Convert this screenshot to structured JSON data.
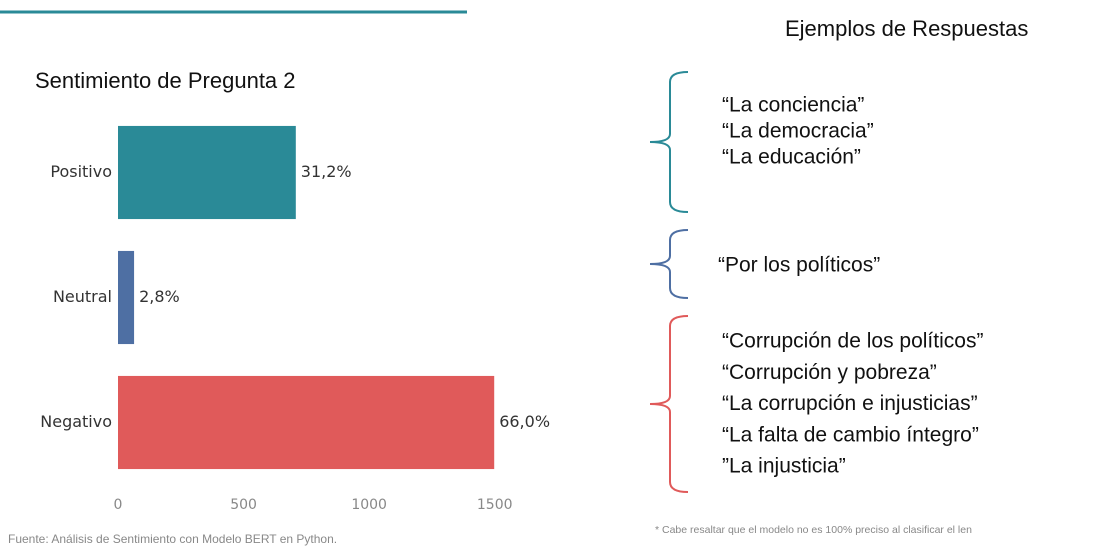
{
  "chart_data": {
    "type": "bar",
    "orientation": "horizontal",
    "title": "Sentimiento de Pregunta 2",
    "categories": [
      "Positivo",
      "Neutral",
      "Negativo"
    ],
    "values": [
      708,
      64,
      1498
    ],
    "share_labels": [
      "31,2%",
      "2,8%",
      "66,0%"
    ],
    "colors": [
      "#2a8a97",
      "#4e6fa3",
      "#e05a5a"
    ],
    "xlim": [
      0,
      1760
    ],
    "xticks": [
      0,
      500,
      1000,
      1500
    ]
  },
  "source": "Fuente: Análisis de Sentimiento con Modelo BERT en Python.",
  "examples": {
    "title": "Ejemplos de Respuestas",
    "groups": [
      {
        "color": "#2a8a97",
        "lines": [
          "“La conciencia”",
          "“La democracia”",
          "“La educación”"
        ]
      },
      {
        "color": "#4e6fa3",
        "lines": [
          "“Por los políticos”"
        ]
      },
      {
        "color": "#e05a5a",
        "lines": [
          "“Corrupción de los políticos”",
          "“Corrupción y pobreza”",
          "“La corrupción e injusticias”",
          "“La falta de cambio íntegro”",
          "”La injusticia”"
        ]
      }
    ]
  },
  "footnote": "* Cabe resaltar que el modelo no es 100% preciso al clasificar el len"
}
